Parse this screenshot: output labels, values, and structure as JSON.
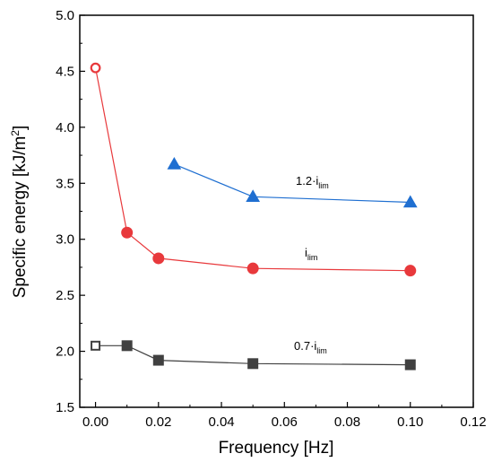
{
  "chart_data": {
    "type": "line",
    "title": "",
    "xlabel": "Frequency [Hz]",
    "ylabel_prefix": "Specific energy [kJ/m",
    "ylabel_sup": "2",
    "ylabel_suffix": "]",
    "xlim": [
      -0.005,
      0.12
    ],
    "ylim": [
      1.5,
      5.0
    ],
    "x_ticks": [
      0.0,
      0.02,
      0.04,
      0.06,
      0.08,
      0.1,
      0.12
    ],
    "x_tick_labels": [
      "0.00",
      "0.02",
      "0.04",
      "0.06",
      "0.08",
      "0.10",
      "0.12"
    ],
    "y_ticks": [
      1.5,
      2.0,
      2.5,
      3.0,
      3.5,
      4.0,
      4.5,
      5.0
    ],
    "y_tick_labels": [
      "1.5",
      "2.0",
      "2.5",
      "3.0",
      "3.5",
      "4.0",
      "4.5",
      "5.0"
    ],
    "grid": false,
    "legend": "none",
    "series": [
      {
        "label_main": "1.2·i",
        "label_sub": "lim",
        "color": "#1f6fd1",
        "marker": "triangle",
        "points": [
          {
            "x": 0.025,
            "y": 3.67,
            "filled": true
          },
          {
            "x": 0.05,
            "y": 3.38,
            "filled": true
          },
          {
            "x": 0.1,
            "y": 3.33,
            "filled": true
          }
        ]
      },
      {
        "label_main": "i",
        "label_sub": "lim",
        "color": "#e8393c",
        "marker": "circle",
        "points": [
          {
            "x": 0.0,
            "y": 4.53,
            "filled": false
          },
          {
            "x": 0.01,
            "y": 3.06,
            "filled": true
          },
          {
            "x": 0.02,
            "y": 2.83,
            "filled": true
          },
          {
            "x": 0.05,
            "y": 2.74,
            "filled": true
          },
          {
            "x": 0.1,
            "y": 2.72,
            "filled": true
          }
        ]
      },
      {
        "label_main": "0.7·i",
        "label_sub": "lim",
        "color": "#404040",
        "marker": "square",
        "points": [
          {
            "x": 0.0,
            "y": 2.05,
            "filled": false
          },
          {
            "x": 0.01,
            "y": 2.05,
            "filled": true
          },
          {
            "x": 0.02,
            "y": 1.92,
            "filled": true
          },
          {
            "x": 0.05,
            "y": 1.89,
            "filled": true
          },
          {
            "x": 0.1,
            "y": 1.88,
            "filled": true
          }
        ]
      }
    ]
  }
}
